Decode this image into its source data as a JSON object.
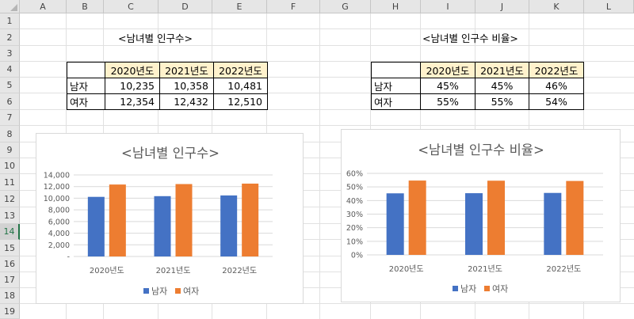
{
  "columns": [
    "A",
    "B",
    "C",
    "D",
    "E",
    "F",
    "G",
    "H",
    "I",
    "J",
    "K",
    "L"
  ],
  "rows": [
    "1",
    "2",
    "3",
    "4",
    "5",
    "6",
    "7",
    "8",
    "9",
    "10",
    "11",
    "12",
    "13",
    "14",
    "15",
    "16",
    "17",
    "18",
    "19"
  ],
  "selected_row": "14",
  "table1": {
    "title": "<남녀별 인구수>",
    "headers": [
      "",
      "2020년도",
      "2021년도",
      "2022년도"
    ],
    "rows": [
      {
        "label": "남자",
        "values": [
          "10,235",
          "10,358",
          "10,481"
        ]
      },
      {
        "label": "여자",
        "values": [
          "12,354",
          "12,432",
          "12,510"
        ]
      }
    ]
  },
  "table2": {
    "title": "<남녀별 인구수 비율>",
    "headers": [
      "",
      "2020년도",
      "2021년도",
      "2022년도"
    ],
    "rows": [
      {
        "label": "남자",
        "values": [
          "45%",
          "45%",
          "46%"
        ]
      },
      {
        "label": "여자",
        "values": [
          "55%",
          "55%",
          "54%"
        ]
      }
    ]
  },
  "colors": {
    "male": "#4472c4",
    "female": "#ed7d31",
    "header_fill": "#fff2cc",
    "grid": "#d9d9d9"
  },
  "chart_data": [
    {
      "type": "bar",
      "title": "<남녀별 인구수>",
      "categories": [
        "2020년도",
        "2021년도",
        "2022년도"
      ],
      "series": [
        {
          "name": "남자",
          "values": [
            10235,
            10358,
            10481
          ]
        },
        {
          "name": "여자",
          "values": [
            12354,
            12432,
            12510
          ]
        }
      ],
      "ylim": [
        0,
        14000
      ],
      "yticks": [
        "-",
        "2,000",
        "4,000",
        "6,000",
        "8,000",
        "10,000",
        "12,000",
        "14,000"
      ],
      "grid": true,
      "legend": "bottom"
    },
    {
      "type": "bar",
      "title": "<남녀별 인구수 비율>",
      "categories": [
        "2020년도",
        "2021년도",
        "2022년도"
      ],
      "series": [
        {
          "name": "남자",
          "values": [
            0.453,
            0.454,
            0.456
          ]
        },
        {
          "name": "여자",
          "values": [
            0.547,
            0.546,
            0.544
          ]
        }
      ],
      "ylim": [
        0,
        0.6
      ],
      "yticks": [
        "0%",
        "10%",
        "20%",
        "30%",
        "40%",
        "50%",
        "60%"
      ],
      "grid": true,
      "legend": "bottom"
    }
  ]
}
